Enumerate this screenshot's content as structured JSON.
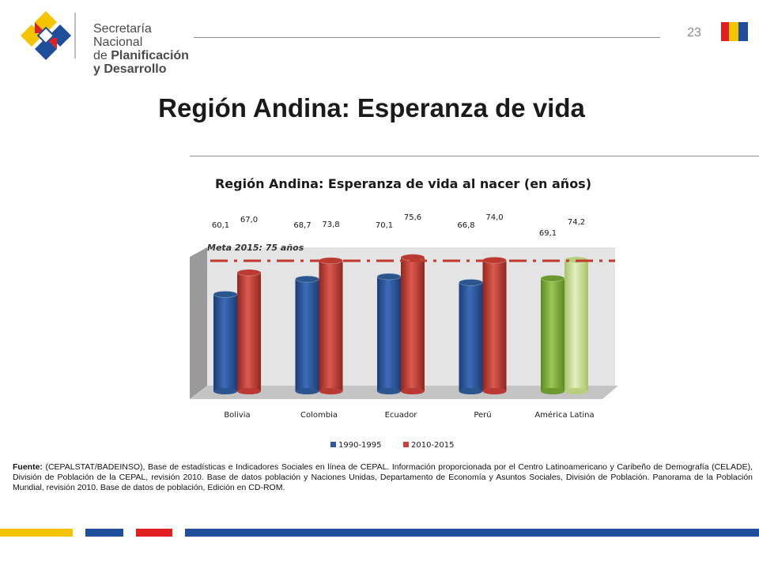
{
  "header": {
    "logo": {
      "line1": "Secretaría Nacional",
      "line2_prefix": "de ",
      "line2_bold": "Planificación",
      "line3": "y Desarrollo",
      "colors": [
        "#f5c400",
        "#1f4e9a",
        "#e02020"
      ]
    },
    "page_number": "23",
    "flag_colors": [
      "#e02020",
      "#f5c400",
      "#1f4e9a"
    ]
  },
  "slide_title": "Región Andina: Esperanza de vida",
  "chart_data": {
    "type": "bar",
    "title": "Región Andina: Esperanza de vida al nacer (en años)",
    "categories": [
      "Bolivia",
      "Colombia",
      "Ecuador",
      "Perú",
      "América Latina"
    ],
    "series": [
      {
        "name": "1990-1995",
        "values": [
          60.1,
          68.7,
          70.1,
          66.8,
          69.1
        ],
        "labels": [
          "60,1",
          "68,7",
          "70,1",
          "66,8",
          "69,1"
        ],
        "color": "#2e5aa0"
      },
      {
        "name": "2010-2015",
        "values": [
          67.0,
          73.8,
          75.6,
          74.0,
          74.2
        ],
        "labels": [
          "67,0",
          "73,8",
          "75,6",
          "74,0",
          "74,2"
        ],
        "color": "#c8443c"
      }
    ],
    "highlight_category": "América Latina",
    "highlight_colors": [
      "#7fae3c",
      "#cfe098"
    ],
    "target_line": {
      "value": 75,
      "label": "Meta 2015: 75 años",
      "color": "#c0392b"
    },
    "ylim": [
      0,
      75
    ],
    "legend_position": "bottom",
    "grid": false
  },
  "source": {
    "label": "Fuente:",
    "text": " (CEPALSTAT/BADEINSO), Base de estadísticas e Indicadores Sociales en línea de CEPAL. Información proporcionada por el Centro Latinoamericano y Caribeño de Demografía (CELADE), División de Población de la CEPAL, revisión 2010. Base de datos población y Naciones Unidas, Departamento de Economía y Asuntos Sociales, División de Población. Panorama de la Población Mundial, revisión 2010. Base de datos de población, Edición en CD-ROM."
  },
  "footer_bar_colors": [
    "#f5c400",
    "#1f4e9a",
    "#e02020"
  ]
}
